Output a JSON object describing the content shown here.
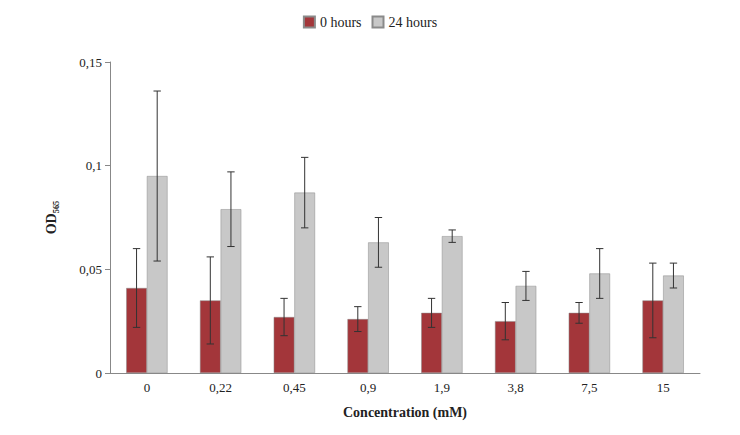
{
  "chart_data": {
    "type": "bar",
    "x_label": "Concentration (mM)",
    "y_label": "OD₅₆₅",
    "categories": [
      "0",
      "0,22",
      "0,45",
      "0,9",
      "1,9",
      "3,8",
      "7,5",
      "15"
    ],
    "series": [
      {
        "name": "0 hours",
        "color": "#a3363a",
        "values": [
          0.041,
          0.035,
          0.027,
          0.026,
          0.029,
          0.025,
          0.029,
          0.035
        ],
        "errors": [
          0.019,
          0.021,
          0.009,
          0.006,
          0.007,
          0.009,
          0.005,
          0.018
        ]
      },
      {
        "name": "24 hours",
        "color": "#c8c8c8",
        "values": [
          0.095,
          0.079,
          0.087,
          0.063,
          0.066,
          0.042,
          0.048,
          0.047
        ],
        "errors": [
          0.041,
          0.018,
          0.017,
          0.012,
          0.003,
          0.007,
          0.012,
          0.006
        ]
      }
    ],
    "ylim": [
      0,
      0.15
    ],
    "yticks": [
      0,
      {
        "value": 0.05,
        "label": "0,05"
      },
      {
        "value": 0.1,
        "label": "0,1"
      },
      {
        "value": 0.15,
        "label": "0,15"
      }
    ],
    "grid": false,
    "legend": "top"
  }
}
